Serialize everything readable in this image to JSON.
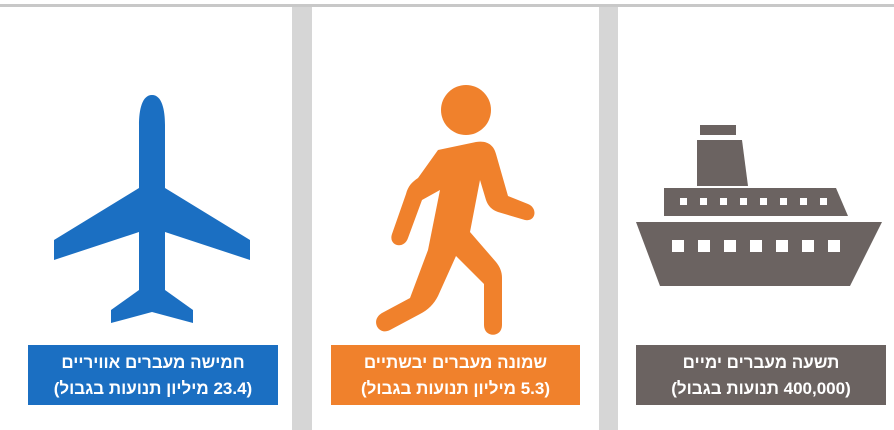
{
  "panels": [
    {
      "title": "חמישה מעברים אוויריים",
      "subtitle": "(23.4 מיליון תנועות בגבול)"
    },
    {
      "title": "שמונה מעברים יבשתיים",
      "subtitle": "(5.3 מיליון תנועות בגבול)"
    },
    {
      "title": "תשעה מעברים ימיים",
      "subtitle": "(400,000 תנועות בגבול)"
    }
  ]
}
